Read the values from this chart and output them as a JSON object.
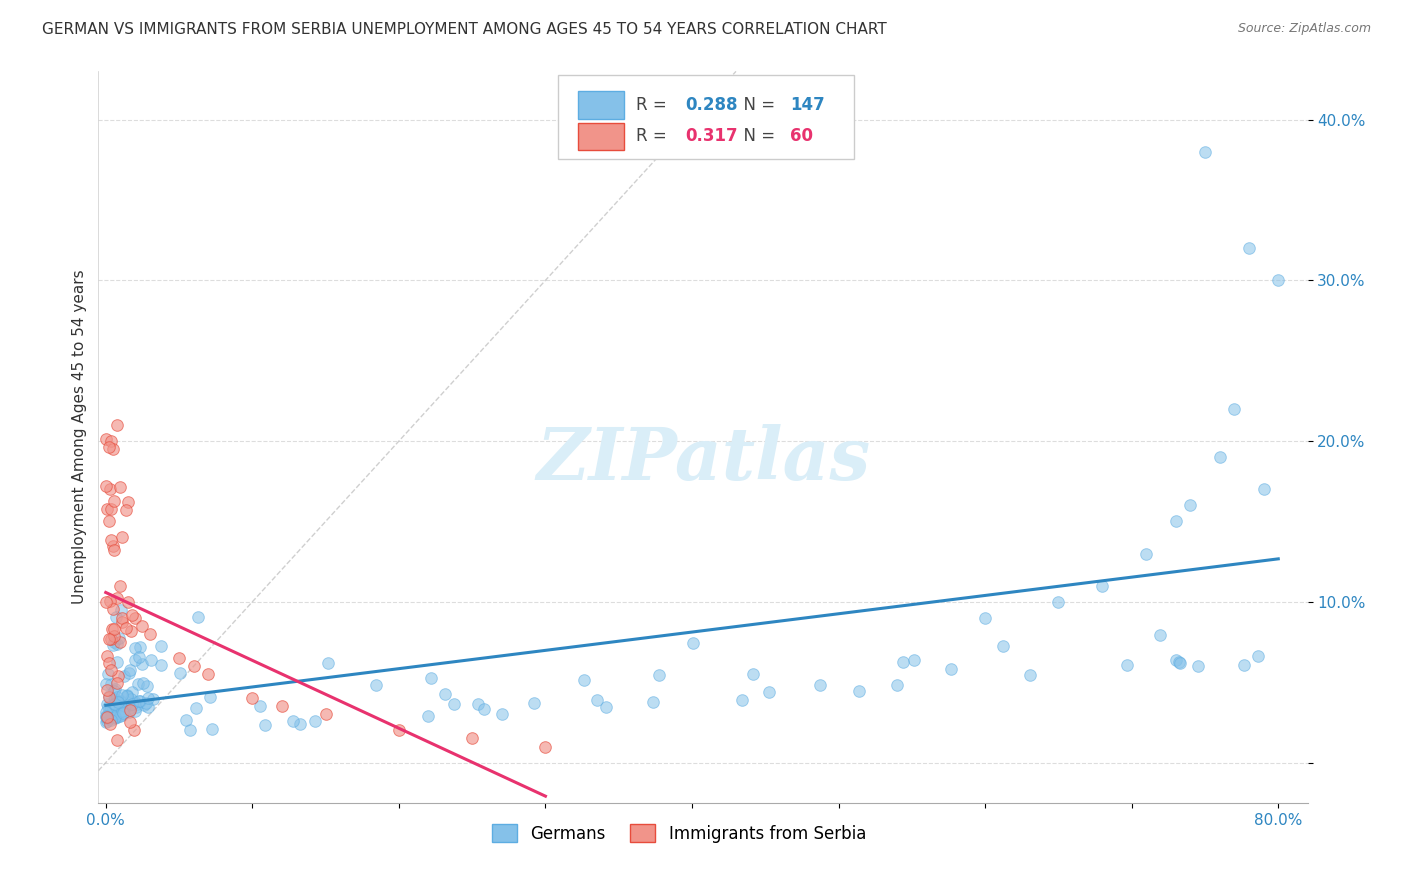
{
  "title": "GERMAN VS IMMIGRANTS FROM SERBIA UNEMPLOYMENT AMONG AGES 45 TO 54 YEARS CORRELATION CHART",
  "source": "Source: ZipAtlas.com",
  "ylabel": "Unemployment Among Ages 45 to 54 years",
  "xlim": [
    -0.005,
    0.82
  ],
  "ylim": [
    -0.025,
    0.43
  ],
  "german_color": "#85c1e9",
  "german_color_dark": "#5dade2",
  "german_line_color": "#2e86c1",
  "serbia_color": "#f1948a",
  "serbia_color_dark": "#e74c3c",
  "serbia_line_color": "#e8326e",
  "german_R": 0.288,
  "german_N": 147,
  "serbia_R": 0.317,
  "serbia_N": 60,
  "watermark": "ZIPatlas",
  "background_color": "#ffffff",
  "watermark_color": "#daeef8",
  "title_fontsize": 11,
  "axis_label_fontsize": 11,
  "tick_fontsize": 11,
  "legend_fontsize": 13,
  "watermark_fontsize": 52
}
